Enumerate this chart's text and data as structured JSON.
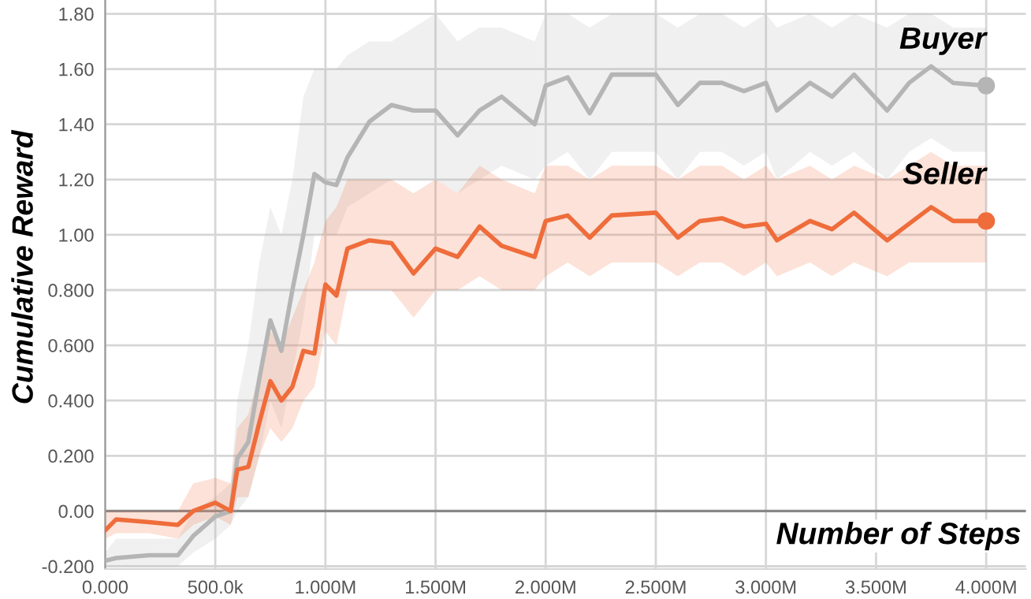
{
  "chart_data": {
    "type": "line",
    "xlabel": "Number of Steps",
    "ylabel": "Cumulative Reward",
    "x": [
      0,
      50000,
      200000,
      330000,
      400000,
      500000,
      570000,
      600000,
      650000,
      700000,
      750000,
      800000,
      850000,
      900000,
      950000,
      1000000,
      1050000,
      1100000,
      1200000,
      1300000,
      1400000,
      1500000,
      1600000,
      1700000,
      1800000,
      1950000,
      2000000,
      2100000,
      2200000,
      2300000,
      2500000,
      2600000,
      2700000,
      2800000,
      2900000,
      3000000,
      3050000,
      3200000,
      3300000,
      3400000,
      3550000,
      3650000,
      3750000,
      3850000,
      4000000
    ],
    "series": [
      {
        "name": "Buyer",
        "color": "#b5b5b5",
        "values": [
          -0.18,
          -0.17,
          -0.16,
          -0.16,
          -0.09,
          -0.02,
          0.0,
          0.19,
          0.25,
          0.48,
          0.69,
          0.58,
          0.8,
          1.0,
          1.22,
          1.19,
          1.18,
          1.28,
          1.41,
          1.47,
          1.45,
          1.45,
          1.36,
          1.45,
          1.5,
          1.4,
          1.54,
          1.57,
          1.44,
          1.58,
          1.58,
          1.47,
          1.55,
          1.55,
          1.52,
          1.55,
          1.45,
          1.55,
          1.5,
          1.58,
          1.45,
          1.55,
          1.61,
          1.55,
          1.54
        ],
        "lower": [
          -0.2,
          -0.2,
          -0.2,
          -0.2,
          -0.15,
          -0.1,
          -0.05,
          0.0,
          0.05,
          0.2,
          0.4,
          0.3,
          0.5,
          0.7,
          1.0,
          1.0,
          1.0,
          1.1,
          1.15,
          1.2,
          1.2,
          1.2,
          1.15,
          1.2,
          1.25,
          1.2,
          1.25,
          1.3,
          1.2,
          1.3,
          1.3,
          1.2,
          1.3,
          1.3,
          1.25,
          1.3,
          1.2,
          1.3,
          1.25,
          1.3,
          1.2,
          1.3,
          1.35,
          1.3,
          1.3
        ],
        "upper": [
          -0.15,
          -0.1,
          -0.1,
          -0.1,
          0.0,
          0.05,
          0.1,
          0.4,
          0.6,
          0.9,
          1.1,
          1.0,
          1.2,
          1.5,
          1.6,
          1.6,
          1.6,
          1.65,
          1.7,
          1.7,
          1.75,
          1.8,
          1.7,
          1.75,
          1.75,
          1.7,
          1.8,
          1.8,
          1.75,
          1.8,
          1.8,
          1.75,
          1.8,
          1.8,
          1.75,
          1.8,
          1.75,
          1.8,
          1.75,
          1.8,
          1.75,
          1.8,
          1.8,
          1.75,
          1.75
        ]
      },
      {
        "name": "Seller",
        "color": "#ef6c3b",
        "values": [
          -0.07,
          -0.03,
          -0.04,
          -0.05,
          0.0,
          0.03,
          0.0,
          0.15,
          0.16,
          0.32,
          0.47,
          0.4,
          0.45,
          0.58,
          0.57,
          0.82,
          0.78,
          0.95,
          0.98,
          0.97,
          0.86,
          0.95,
          0.92,
          1.03,
          0.96,
          0.92,
          1.05,
          1.07,
          0.99,
          1.07,
          1.08,
          0.99,
          1.05,
          1.06,
          1.03,
          1.04,
          0.98,
          1.05,
          1.02,
          1.08,
          0.98,
          1.04,
          1.1,
          1.05,
          1.05
        ],
        "lower": [
          -0.1,
          -0.08,
          -0.08,
          -0.1,
          -0.05,
          -0.02,
          -0.05,
          0.05,
          0.05,
          0.2,
          0.3,
          0.25,
          0.3,
          0.4,
          0.45,
          0.65,
          0.6,
          0.8,
          0.8,
          0.8,
          0.7,
          0.8,
          0.8,
          0.85,
          0.8,
          0.8,
          0.85,
          0.9,
          0.85,
          0.9,
          0.9,
          0.85,
          0.9,
          0.9,
          0.85,
          0.9,
          0.85,
          0.9,
          0.85,
          0.9,
          0.85,
          0.9,
          0.9,
          0.9,
          0.9
        ],
        "upper": [
          0.0,
          0.0,
          0.0,
          0.0,
          0.1,
          0.12,
          0.1,
          0.3,
          0.35,
          0.5,
          0.65,
          0.6,
          0.7,
          0.8,
          0.9,
          1.05,
          1.1,
          1.2,
          1.2,
          1.2,
          1.15,
          1.2,
          1.15,
          1.25,
          1.2,
          1.15,
          1.25,
          1.25,
          1.2,
          1.25,
          1.25,
          1.2,
          1.25,
          1.25,
          1.2,
          1.25,
          1.2,
          1.25,
          1.2,
          1.25,
          1.2,
          1.25,
          1.3,
          1.25,
          1.25
        ]
      }
    ],
    "xlim": [
      0,
      4180000
    ],
    "xticks": [
      {
        "value": 0,
        "label": "0.000"
      },
      {
        "value": 500000,
        "label": "500.0k"
      },
      {
        "value": 1000000,
        "label": "1.000M"
      },
      {
        "value": 1500000,
        "label": "1.500M"
      },
      {
        "value": 2000000,
        "label": "2.000M"
      },
      {
        "value": 2500000,
        "label": "2.500M"
      },
      {
        "value": 3000000,
        "label": "3.000M"
      },
      {
        "value": 3500000,
        "label": "3.500M"
      },
      {
        "value": 4000000,
        "label": "4.000M"
      }
    ],
    "ylim": [
      -0.21,
      1.85
    ],
    "yticks": [
      {
        "value": -0.2,
        "label": "-0.200"
      },
      {
        "value": 0,
        "label": "0.00"
      },
      {
        "value": 0.2,
        "label": "0.200"
      },
      {
        "value": 0.4,
        "label": "0.400"
      },
      {
        "value": 0.6,
        "label": "0.600"
      },
      {
        "value": 0.8,
        "label": "0.800"
      },
      {
        "value": 1.0,
        "label": "1.00"
      },
      {
        "value": 1.2,
        "label": "1.20"
      },
      {
        "value": 1.4,
        "label": "1.40"
      },
      {
        "value": 1.6,
        "label": "1.60"
      },
      {
        "value": 1.8,
        "label": "1.80"
      }
    ],
    "ref_lines": [
      {
        "axis": "y",
        "value": 0,
        "color": "#888888"
      }
    ],
    "grid": true,
    "legend": false
  }
}
